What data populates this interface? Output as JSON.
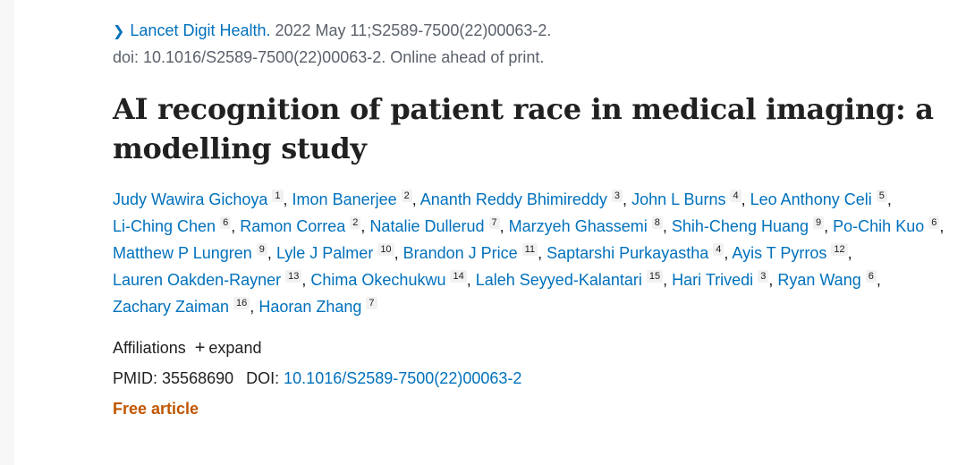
{
  "citation": {
    "journal": "Lancet Digit Health.",
    "details": " 2022 May 11;S2589-7500(22)00063-2.",
    "doi_line": "doi: 10.1016/S2589-7500(22)00063-2. Online ahead of print."
  },
  "title": "AI recognition of patient race in medical imaging: a modelling study",
  "authors": [
    {
      "name": "Judy Wawira Gichoya",
      "aff": "1"
    },
    {
      "name": "Imon Banerjee",
      "aff": "2"
    },
    {
      "name": "Ananth Reddy Bhimireddy",
      "aff": "3"
    },
    {
      "name": "John L Burns",
      "aff": "4"
    },
    {
      "name": "Leo Anthony Celi",
      "aff": "5"
    },
    {
      "name": "Li-Ching Chen",
      "aff": "6"
    },
    {
      "name": "Ramon Correa",
      "aff": "2"
    },
    {
      "name": "Natalie Dullerud",
      "aff": "7"
    },
    {
      "name": "Marzyeh Ghassemi",
      "aff": "8"
    },
    {
      "name": "Shih-Cheng Huang",
      "aff": "9"
    },
    {
      "name": "Po-Chih Kuo",
      "aff": "6"
    },
    {
      "name": "Matthew P Lungren",
      "aff": "9"
    },
    {
      "name": "Lyle J Palmer",
      "aff": "10"
    },
    {
      "name": "Brandon J Price",
      "aff": "11"
    },
    {
      "name": "Saptarshi Purkayastha",
      "aff": "4"
    },
    {
      "name": "Ayis T Pyrros",
      "aff": "12"
    },
    {
      "name": "Lauren Oakden-Rayner",
      "aff": "13"
    },
    {
      "name": "Chima Okechukwu",
      "aff": "14"
    },
    {
      "name": "Laleh Seyyed-Kalantari",
      "aff": "15"
    },
    {
      "name": "Hari Trivedi",
      "aff": "3"
    },
    {
      "name": "Ryan Wang",
      "aff": "6"
    },
    {
      "name": "Zachary Zaiman",
      "aff": "16"
    },
    {
      "name": "Haoran Zhang",
      "aff": "7"
    }
  ],
  "affiliations": {
    "label": "Affiliations",
    "expand": "expand"
  },
  "ids": {
    "pmid_label": "PMID:",
    "pmid": "35568690",
    "doi_label": "DOI:",
    "doi": "10.1016/S2589-7500(22)00063-2"
  },
  "free_article": "Free article",
  "icons": {
    "journal": "chevron-right-icon",
    "expand": "plus-icon"
  }
}
